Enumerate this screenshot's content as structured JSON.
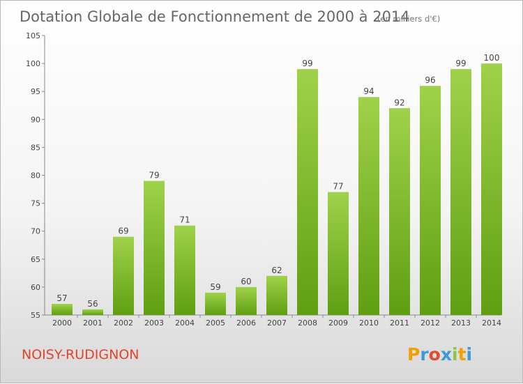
{
  "chart_data": {
    "type": "bar",
    "title": "Dotation Globale de Fonctionnement de 2000 à 2014",
    "subtitle": "(en milliers d'€)",
    "xlabel": "",
    "ylabel": "",
    "categories": [
      "2000",
      "2001",
      "2002",
      "2003",
      "2004",
      "2005",
      "2006",
      "2007",
      "2008",
      "2009",
      "2010",
      "2011",
      "2012",
      "2013",
      "2014"
    ],
    "values": [
      57,
      56,
      69,
      79,
      71,
      59,
      60,
      62,
      99,
      77,
      94,
      92,
      96,
      99,
      100
    ],
    "ylim": [
      55,
      105
    ],
    "yticks": [
      55,
      60,
      65,
      70,
      75,
      80,
      85,
      90,
      95,
      100,
      105
    ],
    "grid": false,
    "bar_color": "#7fbf2e"
  },
  "commune": "NOISY-RUDIGNON",
  "brand": {
    "letters": [
      "P",
      "r",
      "o",
      "x",
      "i",
      "t",
      "i"
    ],
    "colors": [
      "#f0a000",
      "#3a9ad9",
      "#e34a2f",
      "#3a9ad9",
      "#8cc63f",
      "#f0a000",
      "#3a9ad9"
    ]
  }
}
